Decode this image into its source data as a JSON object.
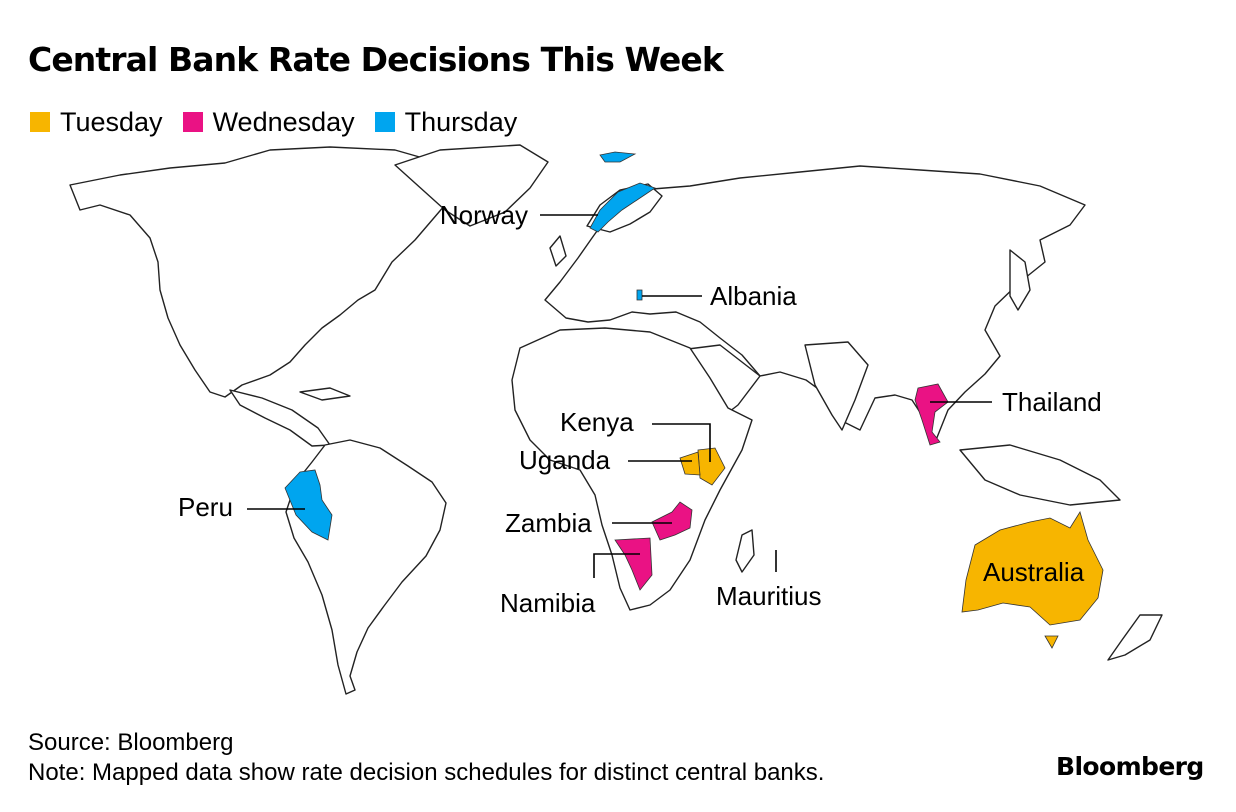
{
  "title": "Central Bank Rate Decisions This Week",
  "legend": [
    {
      "label": "Tuesday",
      "color": "#f7b500"
    },
    {
      "label": "Wednesday",
      "color": "#ea1284"
    },
    {
      "label": "Thursday",
      "color": "#00a5ef"
    }
  ],
  "map": {
    "labels": {
      "norway": "Norway",
      "albania": "Albania",
      "thailand": "Thailand",
      "kenya": "Kenya",
      "uganda": "Uganda",
      "zambia": "Zambia",
      "namibia": "Namibia",
      "peru": "Peru",
      "mauritius": "Mauritius",
      "australia": "Australia"
    }
  },
  "footer": {
    "source": "Source: Bloomberg",
    "note": "Note: Mapped data show rate decision schedules for distinct central banks."
  },
  "brand": "Bloomberg"
}
